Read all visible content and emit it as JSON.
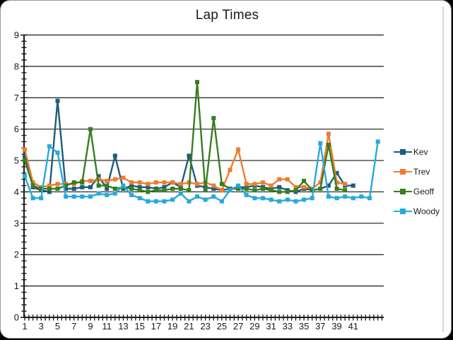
{
  "title": "Lap Times",
  "chart_data": {
    "type": "line",
    "title": "Lap Times",
    "xlabel": "",
    "ylabel": "",
    "x_range": [
      1,
      44
    ],
    "x_tick_label_interval": 2,
    "x_tick_labels_shown": [
      "1",
      "3",
      "5",
      "7",
      "9",
      "11",
      "13",
      "15",
      "17",
      "19",
      "21",
      "23",
      "25",
      "27",
      "29",
      "31",
      "33",
      "35",
      "37",
      "39",
      "41"
    ],
    "ylim": [
      0,
      9
    ],
    "y_tick_labels": [
      "0",
      "1",
      "2",
      "3",
      "4",
      "5",
      "6",
      "7",
      "8",
      "9"
    ],
    "grid": "horizontal-major",
    "legend_position": "right",
    "axis_color": "#1a1a1a",
    "series": [
      {
        "name": "Kev",
        "color": "#1e5c7b",
        "values": [
          5.15,
          4.15,
          4.05,
          4.0,
          6.9,
          4.1,
          4.1,
          4.15,
          4.15,
          4.5,
          4.1,
          5.15,
          4.1,
          4.2,
          4.15,
          4.15,
          4.1,
          4.15,
          4.3,
          4.15,
          5.15,
          4.2,
          4.15,
          4.1,
          4.05,
          4.1,
          4.15,
          4.15,
          4.2,
          4.15,
          4.1,
          4.15,
          4.05,
          4.0,
          4.1,
          4.05,
          4.1,
          4.2,
          4.6,
          4.2,
          4.2,
          null,
          null,
          null
        ]
      },
      {
        "name": "Trev",
        "color": "#ed7d31",
        "values": [
          5.35,
          4.3,
          4.15,
          4.2,
          4.25,
          4.25,
          4.25,
          4.35,
          4.35,
          4.4,
          4.35,
          4.4,
          4.45,
          4.3,
          4.3,
          4.25,
          4.3,
          4.3,
          4.3,
          4.25,
          4.3,
          4.25,
          4.3,
          4.2,
          4.05,
          4.7,
          5.35,
          4.25,
          4.25,
          4.3,
          4.2,
          4.4,
          4.4,
          4.15,
          4.15,
          4.1,
          4.3,
          5.85,
          4.3,
          4.25,
          null,
          null,
          null,
          null
        ]
      },
      {
        "name": "Geoff",
        "color": "#377d22",
        "values": [
          5.0,
          4.2,
          4.1,
          4.1,
          4.1,
          4.2,
          4.3,
          4.3,
          6.0,
          4.2,
          4.2,
          4.1,
          4.15,
          4.1,
          4.05,
          4.0,
          4.05,
          4.05,
          4.1,
          4.1,
          4.05,
          7.5,
          4.05,
          6.35,
          4.25,
          4.1,
          4.1,
          4.1,
          4.05,
          4.1,
          4.05,
          4.0,
          4.0,
          4.05,
          4.35,
          4.05,
          4.1,
          5.5,
          4.1,
          4.05,
          null,
          null,
          null,
          null
        ]
      },
      {
        "name": "Woody",
        "color": "#29a8dc",
        "values": [
          4.5,
          3.8,
          3.8,
          5.45,
          5.25,
          3.85,
          3.85,
          3.85,
          3.85,
          3.95,
          3.9,
          3.95,
          4.2,
          3.9,
          3.8,
          3.7,
          3.7,
          3.7,
          3.75,
          3.95,
          3.7,
          3.85,
          3.75,
          3.85,
          3.7,
          4.05,
          4.2,
          3.9,
          3.8,
          3.8,
          3.75,
          3.7,
          3.75,
          3.7,
          3.75,
          3.8,
          5.55,
          3.85,
          3.8,
          3.85,
          3.8,
          3.85,
          3.8,
          5.6
        ]
      }
    ]
  }
}
